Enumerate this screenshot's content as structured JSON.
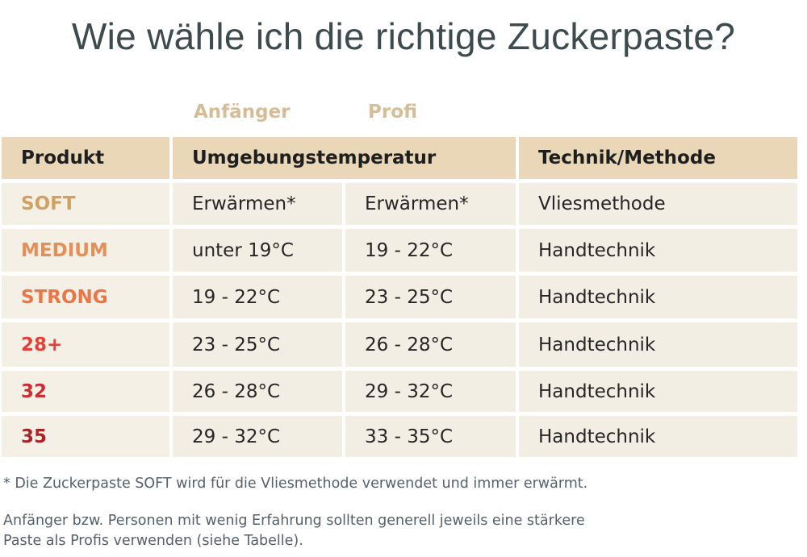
{
  "title": "Wie wähle ich die richtige Zuckerpaste?",
  "levels": {
    "beginner": "Anfänger",
    "pro": "Profi"
  },
  "table": {
    "headers": {
      "product": "Produkt",
      "temperature": "Umgebungstemperatur",
      "technique": "Technik/Methode"
    },
    "rows": [
      {
        "product": "SOFT",
        "color": "#d1a063",
        "beginner": "Erwärmen*",
        "pro": "Erwärmen*",
        "technique": "Vliesmethode"
      },
      {
        "product": "MEDIUM",
        "color": "#e48f58",
        "beginner": "unter 19°C",
        "pro": "19 - 22°C",
        "technique": "Handtechnik"
      },
      {
        "product": "STRONG",
        "color": "#ec7546",
        "beginner": "19 - 22°C",
        "pro": "23 - 25°C",
        "technique": "Handtechnik"
      },
      {
        "product": "28+",
        "color": "#e2413b",
        "beginner": "23 - 25°C",
        "pro": "26 - 28°C",
        "technique": "Handtechnik"
      },
      {
        "product": "32",
        "color": "#cf2b32",
        "beginner": "26 - 28°C",
        "pro": "29 - 32°C",
        "technique": "Handtechnik"
      },
      {
        "product": "35",
        "color": "#a92426",
        "beginner": "29 - 32°C",
        "pro": "33 - 35°C",
        "technique": "Handtechnik"
      }
    ]
  },
  "notes": {
    "asterisk": "* Die Zuckerpaste SOFT wird für die Vliesmethode verwendet und immer erwärmt.",
    "beginner_line1": "Anfänger bzw. Personen mit wenig Erfahrung sollten generell jeweils eine stärkere",
    "beginner_line2": "Paste als Profis verwenden (siehe Tabelle)."
  }
}
